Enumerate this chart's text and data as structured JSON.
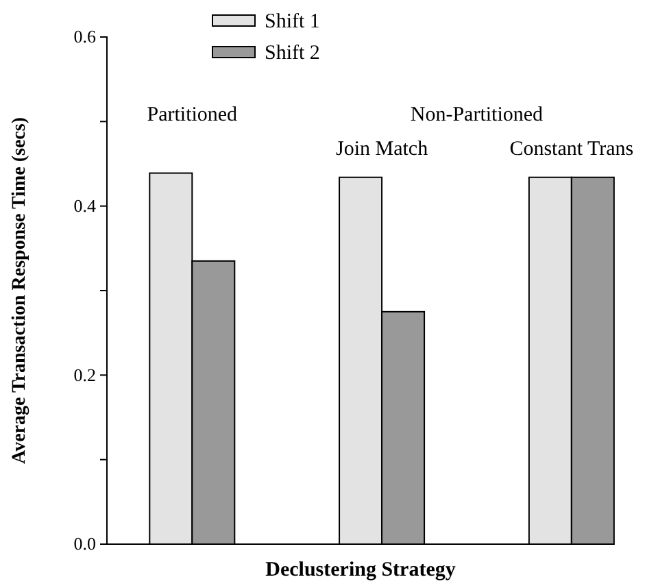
{
  "chart_data": {
    "type": "bar",
    "categories": [
      "Partitioned",
      "Join Match",
      "Constant Trans"
    ],
    "series": [
      {
        "name": "Shift 1",
        "color": "#e3e3e3",
        "values": [
          0.439,
          0.434,
          0.434
        ]
      },
      {
        "name": "Shift 2",
        "color": "#999999",
        "values": [
          0.335,
          0.275,
          0.434
        ]
      }
    ],
    "xlabel": "Declustering Strategy",
    "ylabel": "Average Transaction Response Time (secs)",
    "ylim": [
      0,
      0.6
    ],
    "yticks": [
      "0.0",
      {
        "value": 0.1,
        "label": null
      },
      {
        "value": 0.2,
        "label": "0.2"
      },
      {
        "value": 0.3,
        "label": null
      },
      {
        "value": 0.4,
        "label": "0.4"
      },
      {
        "value": 0.5,
        "label": null
      },
      {
        "value": 0.6,
        "label": "0.6"
      }
    ],
    "annotations": [
      "Non-Partitioned"
    ],
    "legend": "top",
    "grid": false
  }
}
